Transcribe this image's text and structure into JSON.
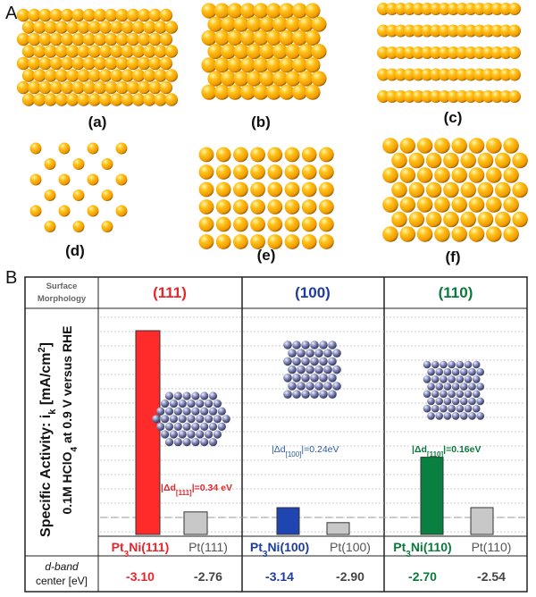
{
  "panel_a": {
    "letter": "A",
    "lattices": [
      {
        "label": "(a)",
        "type": "hex-close-packed"
      },
      {
        "label": "(b)",
        "type": "square-dense"
      },
      {
        "label": "(c)",
        "type": "row-packed"
      },
      {
        "label": "(d)",
        "type": "square-sparse"
      },
      {
        "label": "(e)",
        "type": "square-medium"
      },
      {
        "label": "(f)",
        "type": "rectangular-offset"
      }
    ],
    "sphere_color": "#f5a800",
    "sphere_highlight": "#fff2a6"
  },
  "panel_b": {
    "letter": "B",
    "header_label_line1": "Surface",
    "header_label_line2": "Morphology",
    "yaxis_line1": "Specific Activity: i",
    "yaxis_sub": "k",
    "yaxis_line1_tail": " [mA/cm",
    "yaxis_sup": "2",
    "yaxis_line1_end": "]",
    "yaxis_line2": "0.1M HClO",
    "yaxis_line2_sub": "4",
    "yaxis_line2_tail": " at 0.9 V versus RHE",
    "dband_label_line1": "d-band",
    "dband_label_line2": "center [eV]",
    "groups": [
      {
        "facet": "(111)",
        "color": "#e8252b",
        "bar_color": "#ff2a2a",
        "alloy_label": "Pt3Ni(111)",
        "alloy_pre": "Pt",
        "alloy_sub": "3",
        "alloy_post": "Ni(111)",
        "pure_label": "Pt(111)",
        "alloy_activity": 0.95,
        "pure_activity": 0.105,
        "delta_pre": "|Δd",
        "delta_sub": "[111]",
        "delta_post": "|=0.34 eV",
        "dband_alloy": "-3.10",
        "dband_pure": "-2.76"
      },
      {
        "facet": "(100)",
        "color": "#1e3c9e",
        "bar_color": "#1f45b0",
        "alloy_label": "Pt3Ni(100)",
        "alloy_pre": "Pt",
        "alloy_sub": "3",
        "alloy_post": "Ni(100)",
        "pure_label": "Pt(100)",
        "alloy_activity": 0.125,
        "pure_activity": 0.055,
        "delta_pre": "|Δd",
        "delta_sub": "[100]",
        "delta_post": "|=0.24eV",
        "dband_alloy": "-3.14",
        "dband_pure": "-2.90"
      },
      {
        "facet": "(110)",
        "color": "#0a7a3c",
        "bar_color": "#0a8040",
        "alloy_label": "Pt3Ni(110)",
        "alloy_pre": "Pt",
        "alloy_sub": "3",
        "alloy_post": "Ni(110)",
        "pure_label": "Pt(110)",
        "alloy_activity": 0.36,
        "pure_activity": 0.125,
        "delta_pre": "|Δd",
        "delta_sub": "[110]",
        "delta_post": "|=0.16eV",
        "dband_alloy": "-2.70",
        "dband_pure": "-2.54"
      }
    ],
    "pure_bar_color": "#c8c8c8"
  },
  "chart_data": {
    "type": "bar",
    "title": "Surface Morphology",
    "categories": [
      "Pt3Ni(111)",
      "Pt(111)",
      "Pt3Ni(100)",
      "Pt(100)",
      "Pt3Ni(110)",
      "Pt(110)"
    ],
    "values": [
      0.95,
      0.105,
      0.125,
      0.055,
      0.36,
      0.125
    ],
    "ylabel": "Specific Activity: ik [mA/cm2] 0.1M HClO4 at 0.9 V versus RHE",
    "ylim": [
      0,
      1
    ],
    "grid": true,
    "dband_center_eV": [
      "-3.10",
      "-2.76",
      "-3.14",
      "-2.90",
      "-2.70",
      "-2.54"
    ]
  }
}
